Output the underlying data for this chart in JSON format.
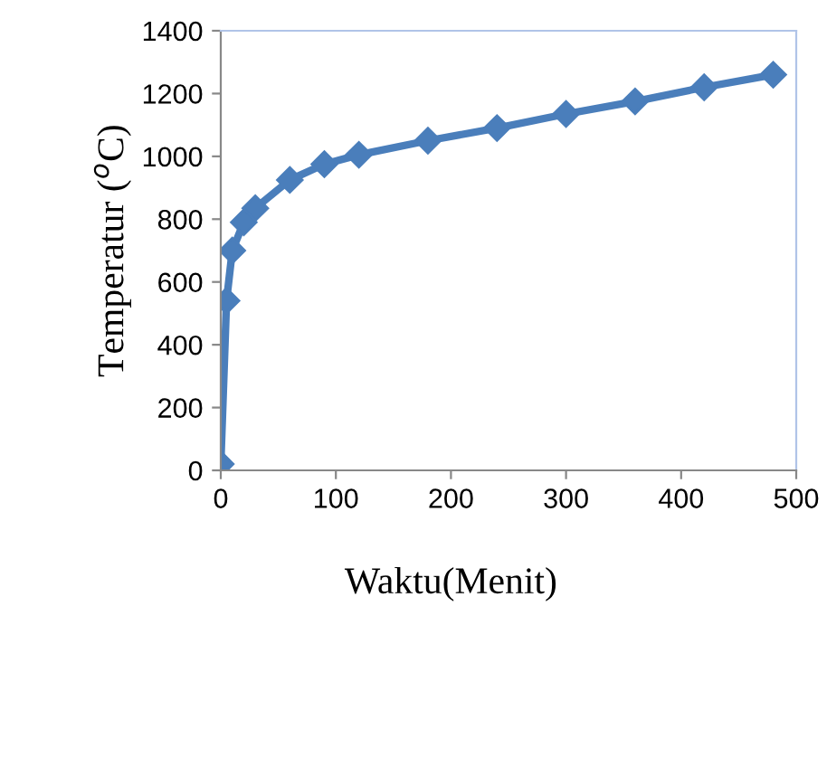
{
  "chart_data": {
    "type": "line",
    "xlabel": "Waktu(Menit)",
    "ylabel": "Temperatur ($^{o}$C)",
    "x": [
      0,
      5,
      10,
      20,
      30,
      60,
      90,
      120,
      180,
      240,
      300,
      360,
      420,
      480
    ],
    "series": [
      {
        "color": "#4a7ebb",
        "values": [
          20,
          540,
          700,
          790,
          835,
          925,
          975,
          1005,
          1050,
          1090,
          1135,
          1175,
          1220,
          1260
        ]
      }
    ],
    "xlim": [
      0,
      500
    ],
    "ylim": [
      0,
      1400
    ],
    "xticks": [
      0,
      100,
      200,
      300,
      400,
      500
    ],
    "yticks": [
      0,
      200,
      400,
      600,
      800,
      1000,
      1200,
      1400
    ],
    "grid": false,
    "legend": false,
    "marker": "diamond",
    "line_style": "solid"
  }
}
